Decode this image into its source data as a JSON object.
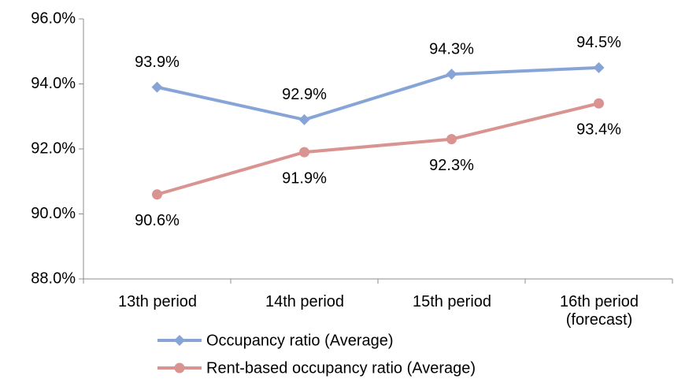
{
  "chart_data": {
    "type": "line",
    "categories": [
      "13th period",
      "14th period",
      "15th period",
      "16th period\n(forecast)"
    ],
    "series": [
      {
        "name": "Occupancy ratio (Average)",
        "color": "#86a5d6",
        "marker": "diamond",
        "values": [
          93.9,
          92.9,
          94.3,
          94.5
        ],
        "value_labels": [
          "93.9%",
          "92.9%",
          "94.3%",
          "94.5%"
        ]
      },
      {
        "name": "Rent-based occupancy ratio (Average)",
        "color": "#d99391",
        "marker": "circle",
        "values": [
          90.6,
          91.9,
          92.3,
          93.4
        ],
        "value_labels": [
          "90.6%",
          "91.9%",
          "92.3%",
          "93.4%"
        ]
      }
    ],
    "ylim": [
      88,
      96
    ],
    "yticks": [
      {
        "value": 88,
        "label": "88.0%"
      },
      {
        "value": 90,
        "label": "90.0%"
      },
      {
        "value": 92,
        "label": "92.0%"
      },
      {
        "value": 94,
        "label": "94.0%"
      },
      {
        "value": 96,
        "label": "96.0%"
      }
    ],
    "grid": false,
    "legend": "bottom"
  }
}
